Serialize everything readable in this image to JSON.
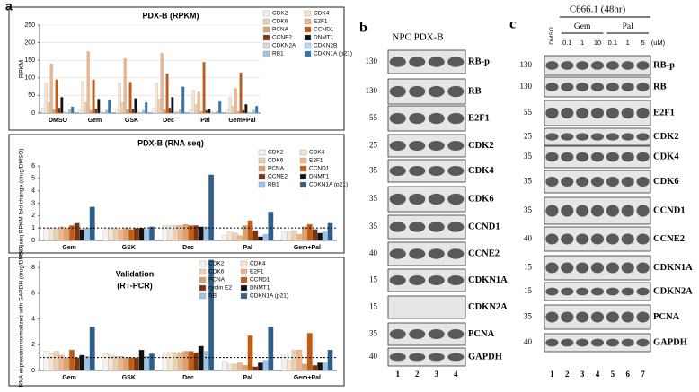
{
  "panel_labels": {
    "a": "a",
    "b": "b",
    "c": "c"
  },
  "chart_data": [
    {
      "type": "bar",
      "title": "PDX-B (RPKM)",
      "ylabel": "RPKM",
      "categories": [
        "DMSO",
        "Gem",
        "GSK",
        "Dec",
        "Pal",
        "Gem+Pal"
      ],
      "ylim": [
        0,
        250
      ],
      "yticks": [
        0,
        50,
        100,
        150,
        200,
        250
      ],
      "series": [
        {
          "name": "CDK2",
          "color": "#f2f2f2",
          "values": [
            15,
            10,
            12,
            15,
            10,
            10
          ]
        },
        {
          "name": "CDK4",
          "color": "#f8e3cf",
          "values": [
            85,
            90,
            85,
            85,
            65,
            45
          ]
        },
        {
          "name": "CDK6",
          "color": "#e7d3b3",
          "values": [
            30,
            30,
            30,
            40,
            25,
            20
          ]
        },
        {
          "name": "E2F1",
          "color": "#f0b48a",
          "values": [
            140,
            175,
            155,
            170,
            60,
            70
          ]
        },
        {
          "name": "PCNA",
          "color": "#d9a26f",
          "values": [
            10,
            8,
            10,
            10,
            5,
            5
          ]
        },
        {
          "name": "CCND1",
          "color": "#c55a11",
          "values": [
            95,
            95,
            88,
            112,
            145,
            115
          ]
        },
        {
          "name": "CCNE2",
          "color": "#7b3410",
          "values": [
            15,
            12,
            12,
            15,
            8,
            8
          ]
        },
        {
          "name": "DNMT1",
          "color": "#111111",
          "values": [
            45,
            40,
            42,
            45,
            12,
            25
          ]
        },
        {
          "name": "CDKN2A",
          "color": "#d9d9d9",
          "values": [
            5,
            5,
            5,
            5,
            3,
            3
          ]
        },
        {
          "name": "CDKN2B",
          "color": "#bdd7ee",
          "values": [
            2,
            2,
            2,
            3,
            1,
            1
          ]
        },
        {
          "name": "RB1",
          "color": "#9dc3e6",
          "values": [
            10,
            8,
            8,
            10,
            5,
            8
          ]
        },
        {
          "name": "CDKN1A (p21)",
          "color": "#2e75b6",
          "values": [
            18,
            38,
            30,
            75,
            33,
            20
          ]
        }
      ]
    },
    {
      "type": "bar",
      "title": "PDX-B (RNA seq)",
      "ylabel": "RNA seq RPKM fold change (drug/DMSO)",
      "categories": [
        "Gem",
        "GSK",
        "Dec",
        "Pal",
        "Gem+Pal"
      ],
      "ylim": [
        0,
        6
      ],
      "yticks": [
        0,
        1,
        2,
        3,
        4,
        5,
        6
      ],
      "hline": 1,
      "series": [
        {
          "name": "CDK2",
          "color": "#f2f2f2",
          "values": [
            1.0,
            1.0,
            1.2,
            0.4,
            0.7
          ]
        },
        {
          "name": "CDK4",
          "color": "#f8e3cf",
          "values": [
            1.0,
            0.9,
            1.2,
            0.7,
            0.7
          ]
        },
        {
          "name": "CDK6",
          "color": "#e7d3b3",
          "values": [
            1.0,
            1.0,
            1.2,
            0.6,
            0.8
          ]
        },
        {
          "name": "E2F1",
          "color": "#f0b48a",
          "values": [
            1.1,
            0.9,
            1.2,
            0.4,
            0.5
          ]
        },
        {
          "name": "PCNA",
          "color": "#d9a26f",
          "values": [
            1.0,
            1.0,
            1.3,
            1.2,
            1.1
          ]
        },
        {
          "name": "CCND1",
          "color": "#c55a11",
          "values": [
            1.2,
            0.9,
            1.2,
            1.6,
            1.3
          ]
        },
        {
          "name": "CCNE2",
          "color": "#7b3410",
          "values": [
            1.4,
            1.0,
            1.2,
            0.8,
            0.9
          ]
        },
        {
          "name": "DNMT1",
          "color": "#111111",
          "values": [
            0.9,
            1.0,
            1.1,
            0.3,
            0.6
          ]
        },
        {
          "name": "RB1",
          "color": "#9dc3e6",
          "values": [
            1.0,
            0.9,
            1.1,
            0.5,
            0.7
          ]
        },
        {
          "name": "CDKN1A (p21)",
          "color": "#2e5f8a",
          "values": [
            2.7,
            1.1,
            5.3,
            2.3,
            1.4
          ]
        }
      ]
    },
    {
      "type": "bar",
      "title": "Validation",
      "subtitle": "(RT-PCR)",
      "ylabel": "RNA expression normalized with GAPDH (drug/DMSO)",
      "categories": [
        "Gem",
        "GSK",
        "Dec",
        "Pal",
        "Gem+Pal"
      ],
      "ylim": [
        0,
        8.5
      ],
      "yticks": [
        0,
        2,
        4,
        6,
        8
      ],
      "hline": 1,
      "series": [
        {
          "name": "CDK2",
          "color": "#f2f2f2",
          "values": [
            1.5,
            1.3,
            1.4,
            0.7,
            1.2
          ]
        },
        {
          "name": "CDK4",
          "color": "#f8e3cf",
          "values": [
            1.3,
            1.2,
            1.4,
            0.5,
            0.8
          ]
        },
        {
          "name": "CDK6",
          "color": "#e7d3b3",
          "values": [
            1.5,
            1.1,
            1.4,
            0.5,
            1.6
          ]
        },
        {
          "name": "E2F1",
          "color": "#f0b48a",
          "values": [
            1.2,
            1.1,
            1.4,
            0.6,
            1.6
          ]
        },
        {
          "name": "PCNA",
          "color": "#d9a26f",
          "values": [
            1.0,
            1.0,
            1.5,
            0.4,
            0.5
          ]
        },
        {
          "name": "CCND1",
          "color": "#c55a11",
          "values": [
            1.6,
            1.0,
            1.5,
            2.7,
            2.9
          ]
        },
        {
          "name": "cyclin E2",
          "color": "#7b3410",
          "values": [
            1.0,
            1.0,
            1.4,
            0.3,
            0.4
          ]
        },
        {
          "name": "DNMT1",
          "color": "#111111",
          "values": [
            1.2,
            1.6,
            1.9,
            0.6,
            0.6
          ]
        },
        {
          "name": "RB",
          "color": "#9dc3e6",
          "values": [
            1.1,
            1.1,
            1.5,
            0.8,
            0.6
          ]
        },
        {
          "name": "CDKN1A (p21)",
          "color": "#2e5f8a",
          "values": [
            3.4,
            1.3,
            8.6,
            3.4,
            1.6
          ]
        }
      ]
    }
  ],
  "blots": [
    {
      "title": "NPC PDX-B",
      "lanes": [
        "1",
        "2",
        "3",
        "4"
      ],
      "rows": [
        {
          "mw": "130",
          "name": "RB-p"
        },
        {
          "mw": "130",
          "name": "RB"
        },
        {
          "mw": "55",
          "name": "E2F1"
        },
        {
          "mw": "25",
          "name": "CDK2"
        },
        {
          "mw": "35",
          "name": "CDK4"
        },
        {
          "mw": "35",
          "name": "CDK6"
        },
        {
          "mw": "35",
          "name": "CCND1"
        },
        {
          "mw": "40",
          "name": "CCNE2"
        },
        {
          "mw": "15",
          "name": "CDKN1A"
        },
        {
          "mw": "15",
          "name": "CDKN2A"
        },
        {
          "mw": "35",
          "name": "PCNA"
        },
        {
          "mw": "40",
          "name": "GAPDH"
        }
      ]
    },
    {
      "title": "C666.1 (48hr)",
      "control": "DMSO",
      "groups": [
        "Gem",
        "Pal"
      ],
      "doses": [
        "0.1",
        "1",
        "10",
        "0.1",
        "1",
        "5",
        "(uM)"
      ],
      "lanes": [
        "1",
        "2",
        "3",
        "4",
        "5",
        "6",
        "7"
      ],
      "rows": [
        {
          "mw": "130",
          "name": "RB-p"
        },
        {
          "mw": "130",
          "name": "RB"
        },
        {
          "mw": "55",
          "name": "E2F1"
        },
        {
          "mw": "25",
          "name": "CDK2"
        },
        {
          "mw": "35",
          "name": "CDK4"
        },
        {
          "mw": "35",
          "name": "CDK6"
        },
        {
          "mw": "35",
          "name": "CCND1"
        },
        {
          "mw": "40",
          "name": "CCNE2"
        },
        {
          "mw": "15",
          "name": "CDKN1A"
        },
        {
          "mw": "15",
          "name": "CDKN2A"
        },
        {
          "mw": "35",
          "name": "PCNA"
        },
        {
          "mw": "40",
          "name": "GAPDH"
        }
      ]
    }
  ]
}
